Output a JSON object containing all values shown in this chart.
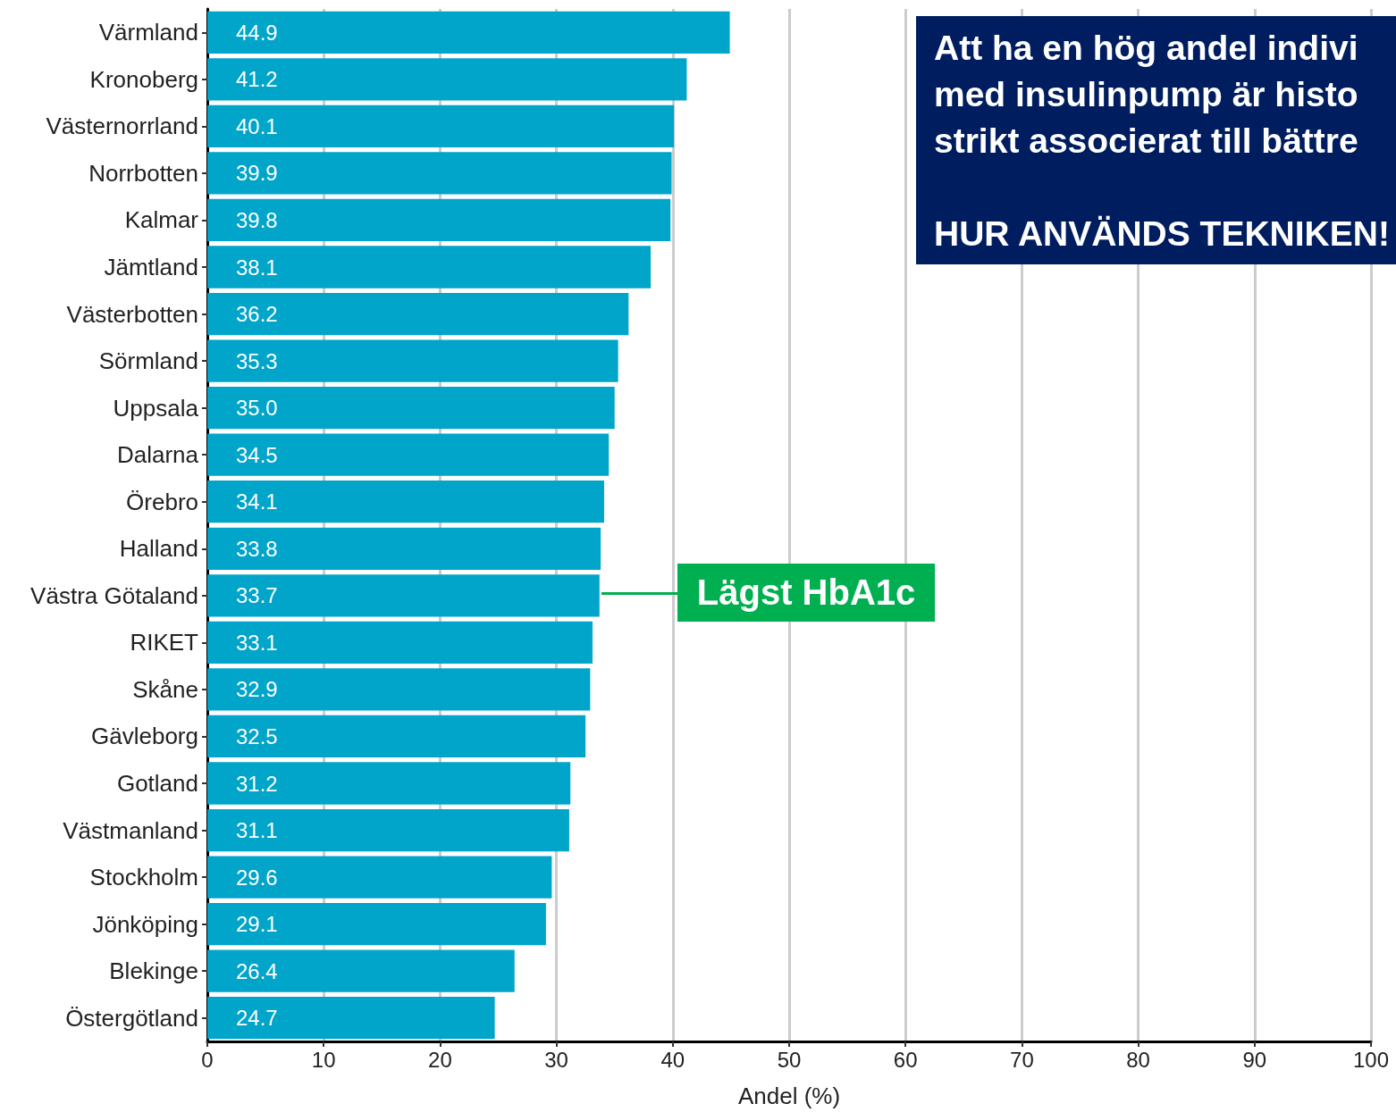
{
  "chart_data": {
    "type": "bar",
    "orientation": "horizontal",
    "xlabel": "Andel (%)",
    "categories": [
      "Värmland",
      "Kronoberg",
      "Västernorrland",
      "Norrbotten",
      "Kalmar",
      "Jämtland",
      "Västerbotten",
      "Sörmland",
      "Uppsala",
      "Dalarna",
      "Örebro",
      "Halland",
      "Västra Götaland",
      "RIKET",
      "Skåne",
      "Gävleborg",
      "Gotland",
      "Västmanland",
      "Stockholm",
      "Jönköping",
      "Blekinge",
      "Östergötland"
    ],
    "values": [
      44.9,
      41.2,
      40.1,
      39.9,
      39.8,
      38.1,
      36.2,
      35.3,
      35.0,
      34.5,
      34.1,
      33.8,
      33.7,
      33.1,
      32.9,
      32.5,
      31.2,
      31.1,
      29.6,
      29.1,
      26.4,
      24.7
    ],
    "value_labels": [
      "44.9",
      "41.2",
      "40.1",
      "39.9",
      "39.8",
      "38.1",
      "36.2",
      "35.3",
      "35.0",
      "34.5",
      "34.1",
      "33.8",
      "33.7",
      "33.1",
      "32.9",
      "32.5",
      "31.2",
      "31.1",
      "29.6",
      "29.1",
      "26.4",
      "24.7"
    ],
    "color": "#00a5c9",
    "xlim": [
      0,
      100
    ],
    "xticks": [
      0,
      10,
      20,
      30,
      40,
      50,
      60,
      70,
      80,
      90,
      100
    ],
    "grid": "x",
    "annotations": [
      "Att ha en hög andel indivi\nmed insulinpump är histo\nstrikt associerat till bättre\n\nHUR ANVÄNDS TEKNIKEN!",
      {
        "text": "Lägst HbA1c",
        "x": 33.7,
        "y": "Västra Götaland"
      }
    ]
  }
}
